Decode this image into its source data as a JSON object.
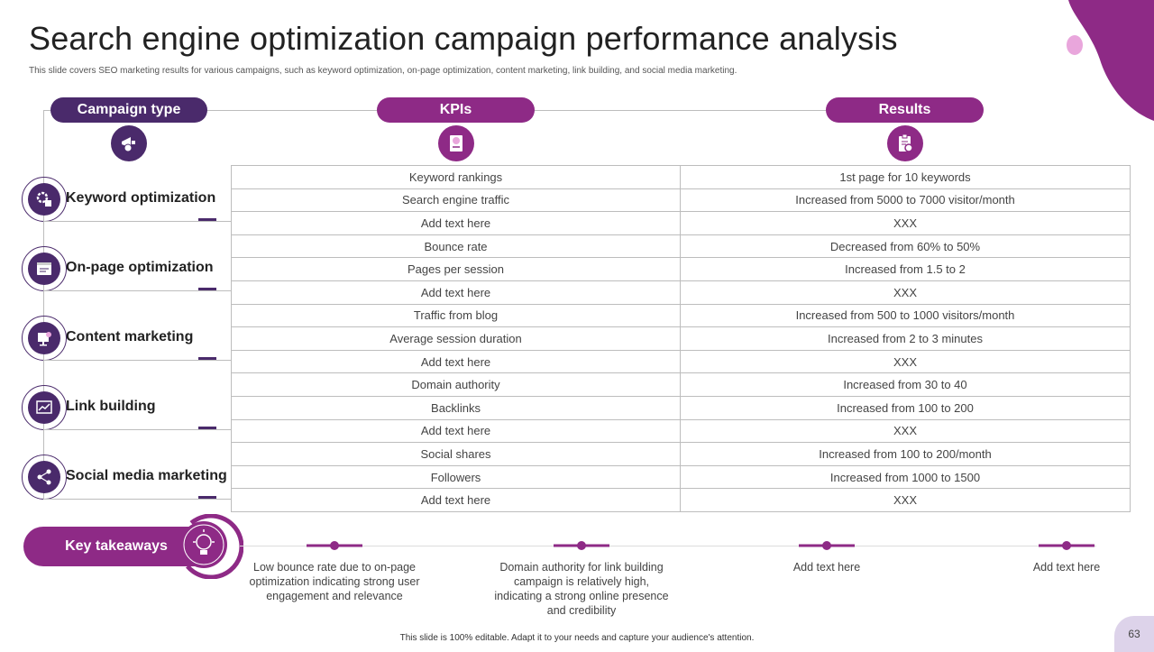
{
  "title": "Search engine optimization campaign performance analysis",
  "subtitle": "This slide covers SEO marketing results for various campaigns, such as keyword optimization, on-page optimization, content marketing, link building, and social media marketing.",
  "headers": {
    "campaign_type": "Campaign type",
    "kpis": "KPIs",
    "results": "Results"
  },
  "categories": [
    {
      "label": "Keyword optimization",
      "icon": "keyword-settings-icon"
    },
    {
      "label": "On-page optimization",
      "icon": "webpage-icon"
    },
    {
      "label": "Content marketing",
      "icon": "content-screen-icon"
    },
    {
      "label": "Link building",
      "icon": "link-chart-icon"
    },
    {
      "label": "Social media marketing",
      "icon": "share-network-icon"
    }
  ],
  "rows": [
    {
      "kpi": "Keyword rankings",
      "result": "1st page for 10 keywords"
    },
    {
      "kpi": "Search engine traffic",
      "result": "Increased from 5000 to 7000 visitor/month"
    },
    {
      "kpi": "Add text here",
      "result": "XXX"
    },
    {
      "kpi": "Bounce rate",
      "result": "Decreased from 60% to 50%"
    },
    {
      "kpi": "Pages per session",
      "result": "Increased from 1.5 to 2"
    },
    {
      "kpi": "Add text here",
      "result": "XXX"
    },
    {
      "kpi": "Traffic from blog",
      "result": "Increased from 500 to 1000 visitors/month"
    },
    {
      "kpi": "Average  session duration",
      "result": "Increased from 2 to 3 minutes"
    },
    {
      "kpi": "Add text here",
      "result": "XXX"
    },
    {
      "kpi": "Domain authority",
      "result": "Increased from 30 to 40"
    },
    {
      "kpi": "Backlinks",
      "result": "Increased from 100 to 200"
    },
    {
      "kpi": "Add text here",
      "result": "XXX"
    },
    {
      "kpi": "Social shares",
      "result": "Increased from 100 to 200/month"
    },
    {
      "kpi": "Followers",
      "result": "Increased from 1000 to 1500"
    },
    {
      "kpi": "Add text here",
      "result": "XXX"
    }
  ],
  "key_takeaways": {
    "label": "Key takeaways",
    "items": [
      "Low bounce rate due to on-page optimization indicating strong user engagement and relevance",
      "Domain authority for link building campaign is relatively high, indicating a strong online presence and credibility",
      "Add text here",
      "Add text here"
    ]
  },
  "footer": "This slide is 100% editable. Adapt it to your needs and capture your audience's attention.",
  "page_number": "63",
  "colors": {
    "dark_purple": "#4a2a6b",
    "magenta": "#8e2a86",
    "light_pink": "#e9a6dc",
    "lavender": "#ddd3ea"
  }
}
